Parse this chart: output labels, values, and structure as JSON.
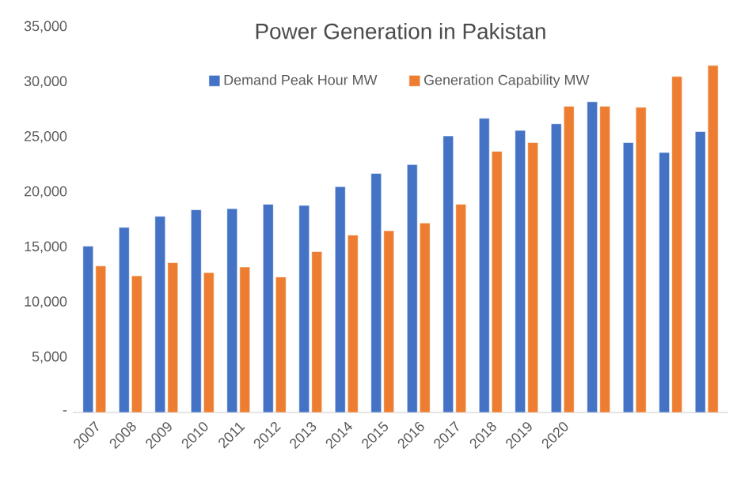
{
  "chart_data": {
    "type": "bar",
    "title": "Power Generation in Pakistan",
    "categories": [
      "2007",
      "2008",
      "2009",
      "2010",
      "2011",
      "2012",
      "2013",
      "2014",
      "2015",
      "2016",
      "2017",
      "2018",
      "2019",
      "2020",
      null,
      null,
      null,
      null
    ],
    "series": [
      {
        "name": "Demand Peak Hour MW",
        "color": "#4472c4",
        "values": [
          15100,
          16800,
          17800,
          18400,
          18500,
          18900,
          18800,
          20500,
          21700,
          22500,
          25100,
          26700,
          25600,
          26200,
          28200,
          24500,
          23600,
          25500
        ]
      },
      {
        "name": "Generation Capability MW",
        "color": "#ed7d31",
        "values": [
          13300,
          12400,
          13600,
          12700,
          13200,
          12300,
          14600,
          16100,
          16500,
          17200,
          18900,
          23700,
          24500,
          27800,
          27800,
          27700,
          30500,
          31500
        ]
      }
    ],
    "ylim": [
      0,
      35000
    ],
    "yticks": [
      {
        "value": 0,
        "label": "-"
      },
      {
        "value": 5000,
        "label": "5,000"
      },
      {
        "value": 10000,
        "label": "10,000"
      },
      {
        "value": 15000,
        "label": "15,000"
      },
      {
        "value": 20000,
        "label": "20,000"
      },
      {
        "value": 25000,
        "label": "25,000"
      },
      {
        "value": 30000,
        "label": "30,000"
      },
      {
        "value": 35000,
        "label": "35,000"
      }
    ],
    "legend": "top",
    "grid": false
  }
}
